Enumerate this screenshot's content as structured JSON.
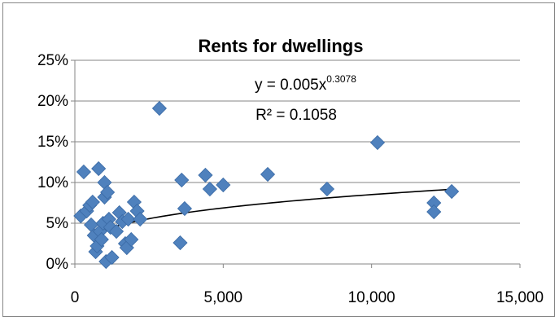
{
  "chart_data": {
    "type": "scatter",
    "title": "Rents for dwellings",
    "xlabel": "",
    "ylabel": "",
    "xlim": [
      0,
      15000
    ],
    "ylim": [
      0,
      0.25
    ],
    "x_ticks": [
      0,
      5000,
      10000,
      15000
    ],
    "x_tick_labels": [
      "0",
      "5,000",
      "10,000",
      "15,000"
    ],
    "y_ticks": [
      0,
      0.05,
      0.1,
      0.15,
      0.2,
      0.25
    ],
    "y_tick_labels": [
      "0%",
      "5%",
      "10%",
      "15%",
      "20%",
      "25%"
    ],
    "grid": "horizontal",
    "legend": "none",
    "marker_color": "#4F81BD",
    "trendline": {
      "type": "power",
      "a": 0.005,
      "b": 0.3078,
      "color": "#000000",
      "x_range": [
        500,
        12700
      ],
      "equation_prefix": "y = 0.005x",
      "equation_exponent": "0.3078",
      "r_squared_label": "R² = 0.1058"
    },
    "points": [
      [
        200,
        0.059
      ],
      [
        300,
        0.113
      ],
      [
        400,
        0.065
      ],
      [
        500,
        0.072
      ],
      [
        550,
        0.048
      ],
      [
        600,
        0.076
      ],
      [
        650,
        0.035
      ],
      [
        700,
        0.015
      ],
      [
        750,
        0.022
      ],
      [
        800,
        0.117
      ],
      [
        850,
        0.04
      ],
      [
        900,
        0.03
      ],
      [
        950,
        0.05
      ],
      [
        1000,
        0.1
      ],
      [
        1000,
        0.082
      ],
      [
        1050,
        0.003
      ],
      [
        1100,
        0.088
      ],
      [
        1150,
        0.055
      ],
      [
        1200,
        0.045
      ],
      [
        1250,
        0.008
      ],
      [
        1400,
        0.04
      ],
      [
        1500,
        0.063
      ],
      [
        1600,
        0.052
      ],
      [
        1700,
        0.025
      ],
      [
        1750,
        0.02
      ],
      [
        1800,
        0.055
      ],
      [
        1900,
        0.03
      ],
      [
        2000,
        0.076
      ],
      [
        2100,
        0.065
      ],
      [
        2200,
        0.055
      ],
      [
        2850,
        0.191
      ],
      [
        3550,
        0.026
      ],
      [
        3600,
        0.103
      ],
      [
        3700,
        0.068
      ],
      [
        4400,
        0.109
      ],
      [
        4550,
        0.092
      ],
      [
        5000,
        0.097
      ],
      [
        6500,
        0.11
      ],
      [
        8500,
        0.092
      ],
      [
        10200,
        0.149
      ],
      [
        12100,
        0.075
      ],
      [
        12100,
        0.064
      ],
      [
        12700,
        0.089
      ]
    ]
  }
}
